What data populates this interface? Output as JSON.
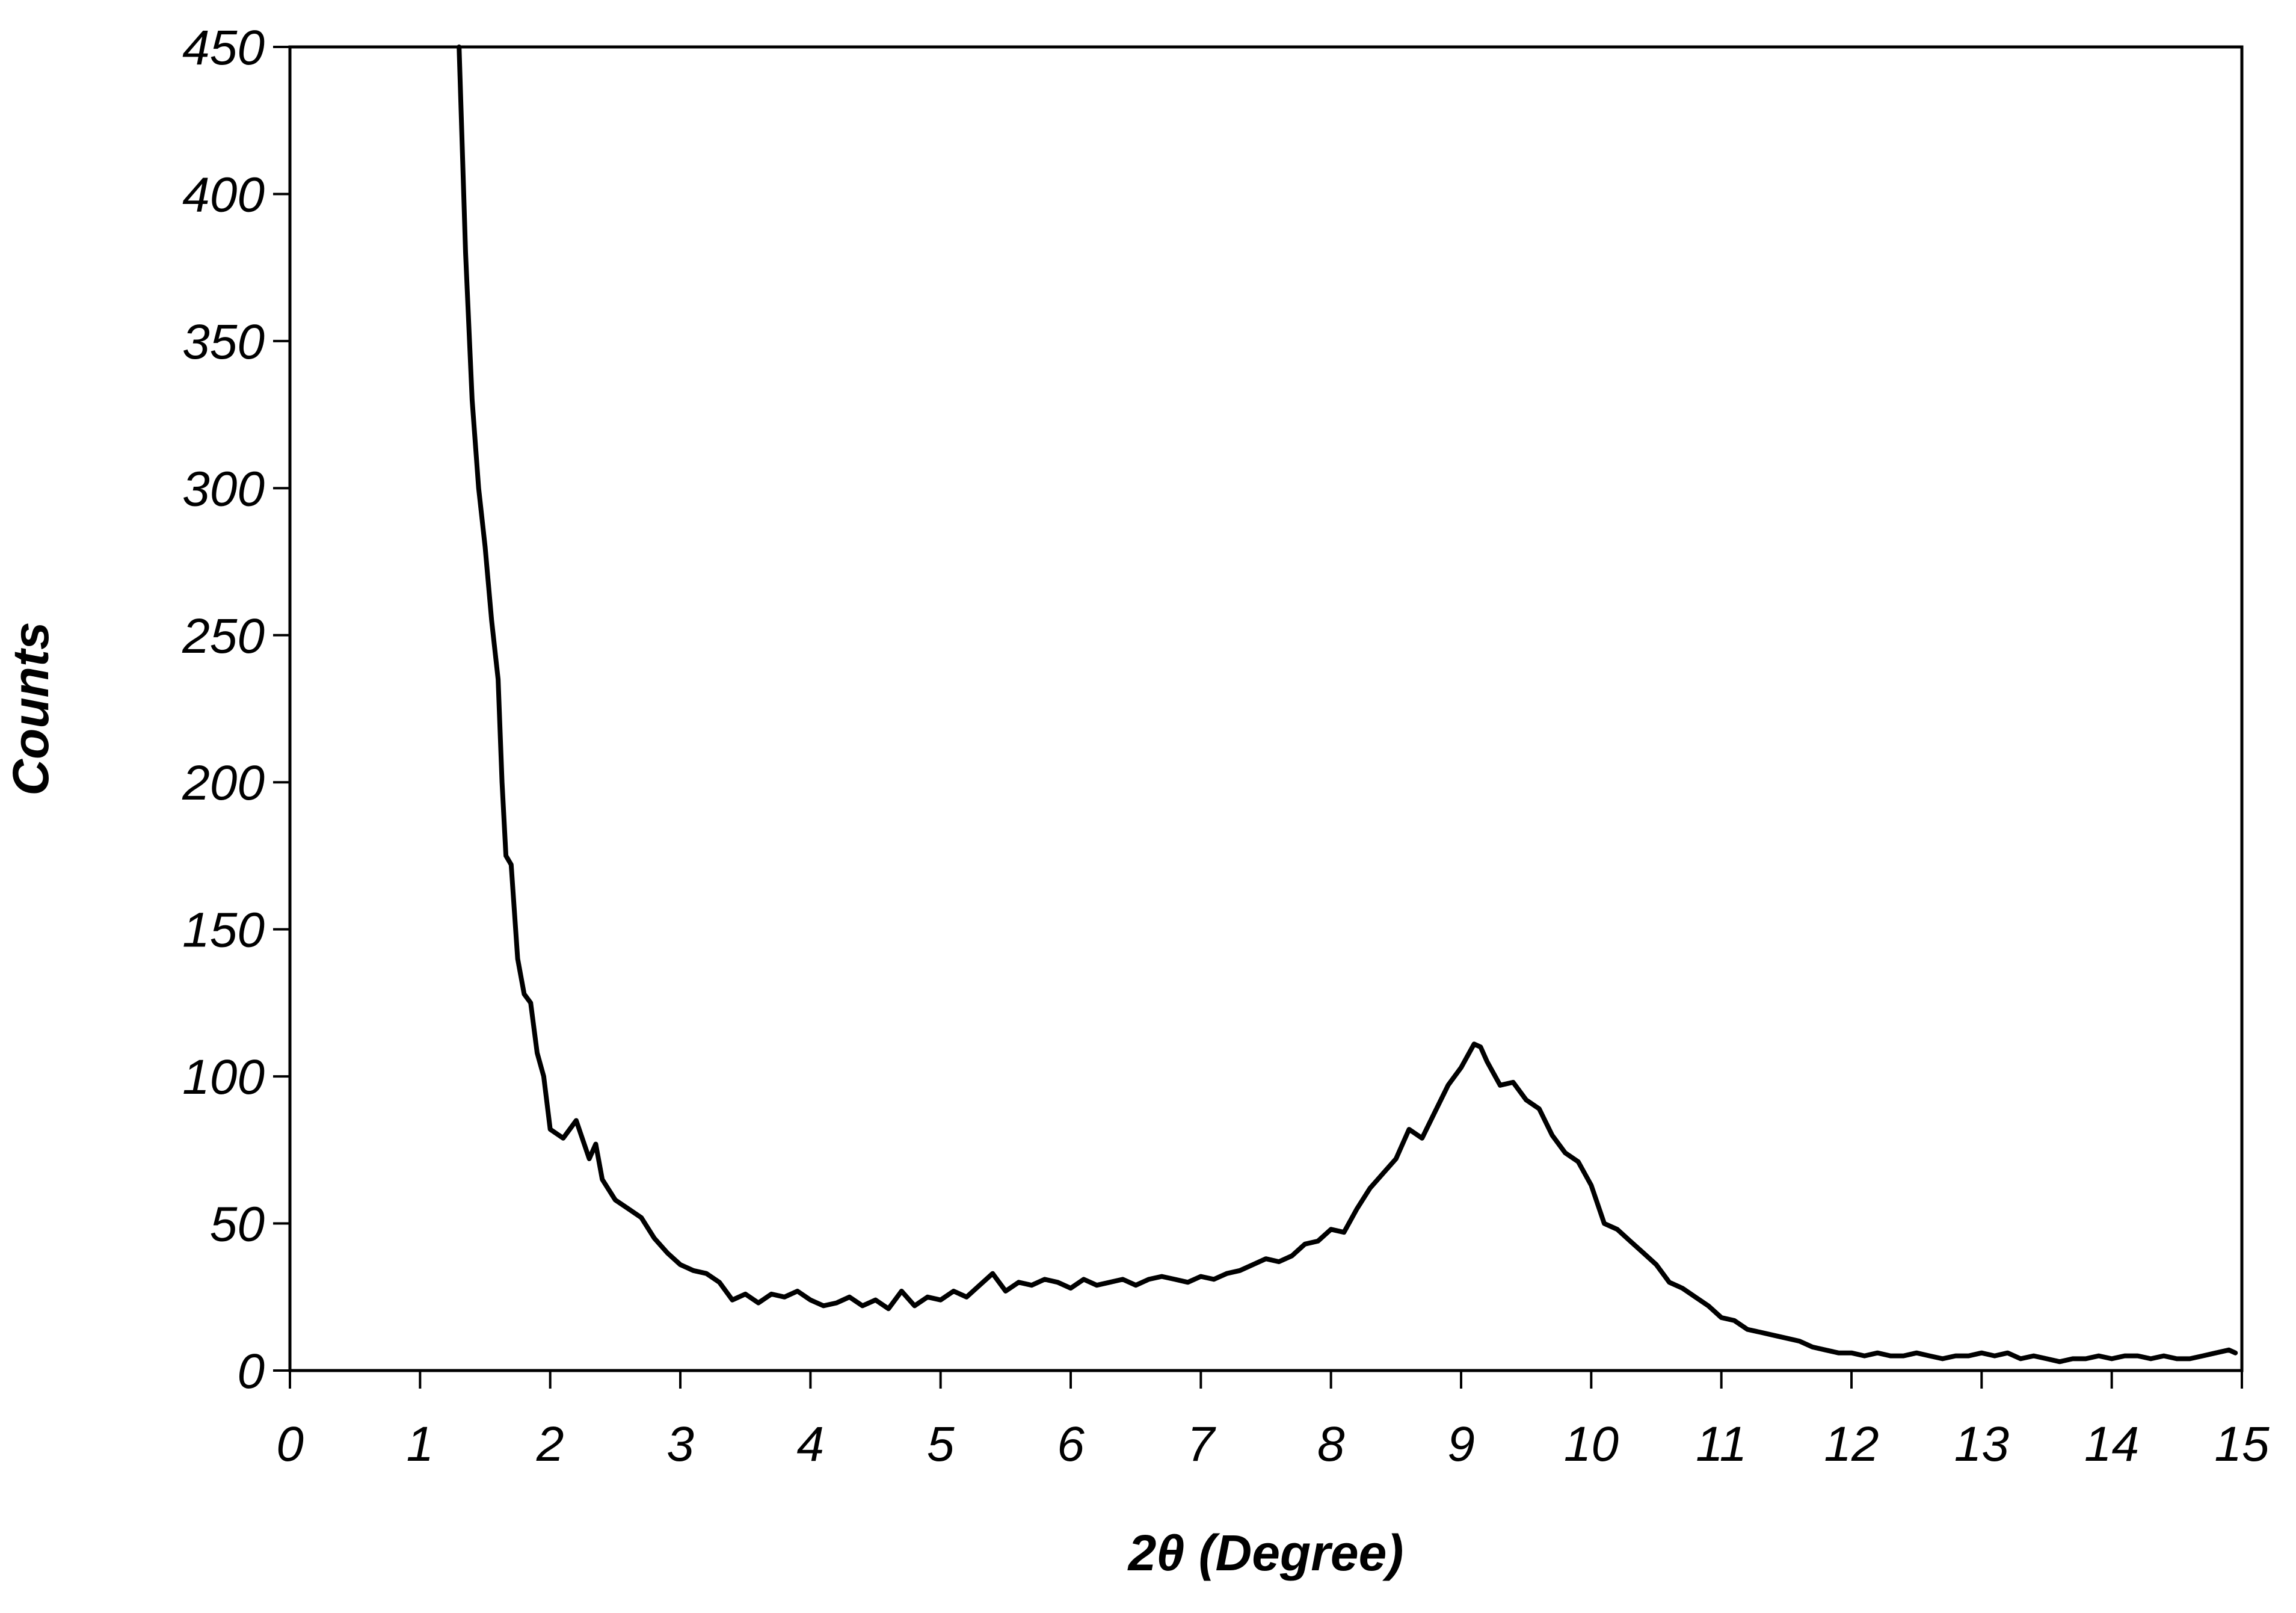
{
  "chart_data": {
    "type": "line",
    "title": "",
    "xlabel": "2θ (Degree)",
    "ylabel": "Counts",
    "xlim": [
      0,
      15
    ],
    "ylim": [
      0,
      450
    ],
    "xticks": [
      "0",
      "1",
      "2",
      "3",
      "4",
      "5",
      "6",
      "7",
      "8",
      "9",
      "10",
      "11",
      "12",
      "13",
      "14",
      "15"
    ],
    "yticks": [
      "0",
      "50",
      "100",
      "150",
      "200",
      "250",
      "300",
      "350",
      "400",
      "450"
    ],
    "grid": false,
    "legend": "none",
    "line_color": "#000000",
    "series": [
      {
        "points": [
          [
            1.3,
            450
          ],
          [
            1.35,
            380
          ],
          [
            1.4,
            330
          ],
          [
            1.45,
            300
          ],
          [
            1.5,
            280
          ],
          [
            1.55,
            255
          ],
          [
            1.6,
            235
          ],
          [
            1.63,
            200
          ],
          [
            1.66,
            175
          ],
          [
            1.7,
            172
          ],
          [
            1.75,
            140
          ],
          [
            1.8,
            128
          ],
          [
            1.85,
            125
          ],
          [
            1.9,
            108
          ],
          [
            1.95,
            100
          ],
          [
            2.0,
            82
          ],
          [
            2.1,
            79
          ],
          [
            2.2,
            85
          ],
          [
            2.3,
            72
          ],
          [
            2.35,
            77
          ],
          [
            2.4,
            65
          ],
          [
            2.5,
            58
          ],
          [
            2.6,
            55
          ],
          [
            2.7,
            52
          ],
          [
            2.8,
            45
          ],
          [
            2.9,
            40
          ],
          [
            3.0,
            36
          ],
          [
            3.1,
            34
          ],
          [
            3.2,
            33
          ],
          [
            3.3,
            30
          ],
          [
            3.4,
            24
          ],
          [
            3.5,
            26
          ],
          [
            3.6,
            23
          ],
          [
            3.7,
            26
          ],
          [
            3.8,
            25
          ],
          [
            3.9,
            27
          ],
          [
            4.0,
            24
          ],
          [
            4.1,
            22
          ],
          [
            4.2,
            23
          ],
          [
            4.3,
            25
          ],
          [
            4.4,
            22
          ],
          [
            4.5,
            24
          ],
          [
            4.6,
            21
          ],
          [
            4.7,
            27
          ],
          [
            4.8,
            22
          ],
          [
            4.9,
            25
          ],
          [
            5.0,
            24
          ],
          [
            5.1,
            27
          ],
          [
            5.2,
            25
          ],
          [
            5.3,
            29
          ],
          [
            5.4,
            33
          ],
          [
            5.5,
            27
          ],
          [
            5.6,
            30
          ],
          [
            5.7,
            29
          ],
          [
            5.8,
            31
          ],
          [
            5.9,
            30
          ],
          [
            6.0,
            28
          ],
          [
            6.1,
            31
          ],
          [
            6.2,
            29
          ],
          [
            6.3,
            30
          ],
          [
            6.4,
            31
          ],
          [
            6.5,
            29
          ],
          [
            6.6,
            31
          ],
          [
            6.7,
            32
          ],
          [
            6.8,
            31
          ],
          [
            6.9,
            30
          ],
          [
            7.0,
            32
          ],
          [
            7.1,
            31
          ],
          [
            7.2,
            33
          ],
          [
            7.3,
            34
          ],
          [
            7.4,
            36
          ],
          [
            7.5,
            38
          ],
          [
            7.6,
            37
          ],
          [
            7.7,
            39
          ],
          [
            7.8,
            43
          ],
          [
            7.9,
            44
          ],
          [
            8.0,
            48
          ],
          [
            8.1,
            47
          ],
          [
            8.2,
            55
          ],
          [
            8.3,
            62
          ],
          [
            8.4,
            67
          ],
          [
            8.5,
            72
          ],
          [
            8.6,
            82
          ],
          [
            8.7,
            79
          ],
          [
            8.8,
            88
          ],
          [
            8.9,
            97
          ],
          [
            9.0,
            103
          ],
          [
            9.1,
            111
          ],
          [
            9.15,
            110
          ],
          [
            9.2,
            105
          ],
          [
            9.3,
            97
          ],
          [
            9.4,
            98
          ],
          [
            9.5,
            92
          ],
          [
            9.6,
            89
          ],
          [
            9.7,
            80
          ],
          [
            9.8,
            74
          ],
          [
            9.9,
            71
          ],
          [
            10.0,
            63
          ],
          [
            10.1,
            50
          ],
          [
            10.2,
            48
          ],
          [
            10.3,
            44
          ],
          [
            10.4,
            40
          ],
          [
            10.5,
            36
          ],
          [
            10.6,
            30
          ],
          [
            10.7,
            28
          ],
          [
            10.8,
            25
          ],
          [
            10.9,
            22
          ],
          [
            11.0,
            18
          ],
          [
            11.1,
            17
          ],
          [
            11.2,
            14
          ],
          [
            11.3,
            13
          ],
          [
            11.4,
            12
          ],
          [
            11.5,
            11
          ],
          [
            11.6,
            10
          ],
          [
            11.7,
            8
          ],
          [
            11.8,
            7
          ],
          [
            11.9,
            6
          ],
          [
            12.0,
            6
          ],
          [
            12.1,
            5
          ],
          [
            12.2,
            6
          ],
          [
            12.3,
            5
          ],
          [
            12.4,
            5
          ],
          [
            12.5,
            6
          ],
          [
            12.6,
            5
          ],
          [
            12.7,
            4
          ],
          [
            12.8,
            5
          ],
          [
            12.9,
            5
          ],
          [
            13.0,
            6
          ],
          [
            13.1,
            5
          ],
          [
            13.2,
            6
          ],
          [
            13.3,
            4
          ],
          [
            13.4,
            5
          ],
          [
            13.5,
            4
          ],
          [
            13.6,
            3
          ],
          [
            13.7,
            4
          ],
          [
            13.8,
            4
          ],
          [
            13.9,
            5
          ],
          [
            14.0,
            4
          ],
          [
            14.1,
            5
          ],
          [
            14.2,
            5
          ],
          [
            14.3,
            4
          ],
          [
            14.4,
            5
          ],
          [
            14.5,
            4
          ],
          [
            14.6,
            4
          ],
          [
            14.7,
            5
          ],
          [
            14.8,
            6
          ],
          [
            14.9,
            7
          ],
          [
            14.95,
            6
          ]
        ]
      }
    ]
  }
}
